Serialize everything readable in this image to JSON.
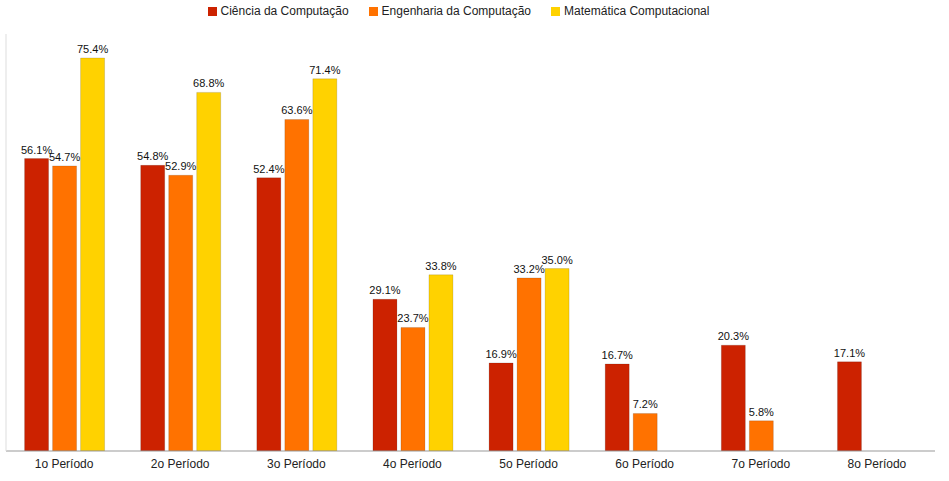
{
  "chart_data": {
    "type": "bar",
    "categories": [
      "1o Período",
      "2o Período",
      "3o Período",
      "4o Período",
      "5o Período",
      "6o Período",
      "7o Período",
      "8o Período"
    ],
    "series": [
      {
        "name": "Ciência da Computação",
        "color": "#cc2200",
        "values": [
          56.1,
          54.8,
          52.4,
          29.1,
          16.9,
          16.7,
          20.3,
          17.1
        ],
        "value_labels": [
          "56.1%",
          "54.8%",
          "52.4%",
          "29.1%",
          "16.9%",
          "16.7%",
          "20.3%",
          "17.1%"
        ]
      },
      {
        "name": "Engenharia da Computação",
        "color": "#ff7200",
        "values": [
          54.7,
          52.9,
          63.6,
          23.7,
          33.2,
          7.2,
          5.8,
          null
        ],
        "value_labels": [
          "54.7%",
          "52.9%",
          "63.6%",
          "23.7%",
          "33.2%",
          "7.2%",
          "5.8%",
          null
        ]
      },
      {
        "name": "Matemática Computacional",
        "color": "#ffd200",
        "values": [
          75.4,
          68.8,
          71.4,
          33.8,
          35.0,
          null,
          null,
          null
        ],
        "value_labels": [
          "75.4%",
          "68.8%",
          "71.4%",
          "33.8%",
          "35.0%",
          null,
          null,
          null
        ]
      }
    ],
    "ylim": [
      0,
      80
    ],
    "legend": "top",
    "data_labels": true,
    "tick_labels": "x",
    "grid": false
  }
}
